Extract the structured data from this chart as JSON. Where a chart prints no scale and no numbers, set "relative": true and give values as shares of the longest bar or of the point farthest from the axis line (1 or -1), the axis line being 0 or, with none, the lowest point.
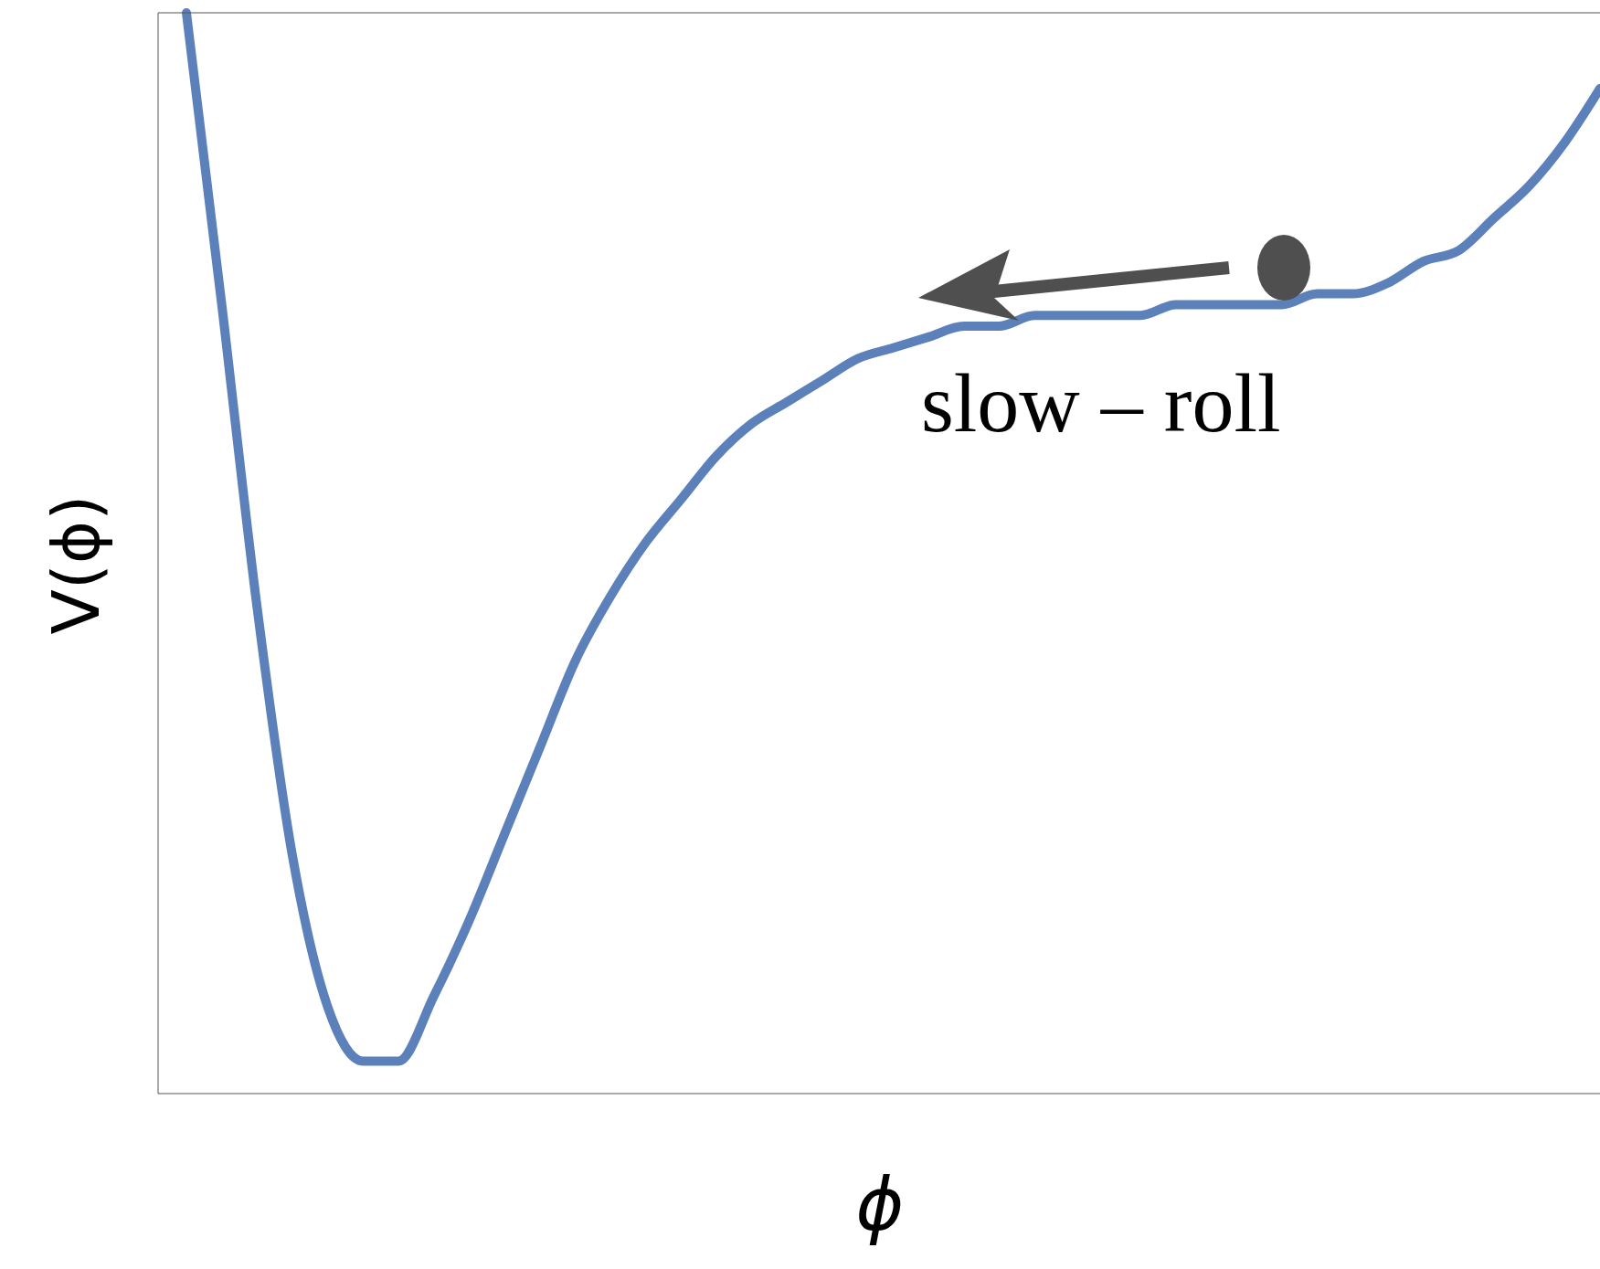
{
  "chart_data": {
    "type": "line",
    "relative": true,
    "xlabel": "ϕ",
    "ylabel": "V(ϕ)",
    "annotations": [
      "slow – roll"
    ],
    "categories": [
      null,
      null,
      null,
      null,
      null,
      null,
      null,
      null,
      null,
      null,
      null,
      null,
      null,
      null,
      null,
      null,
      null,
      null,
      null,
      null,
      null,
      null,
      null,
      null,
      null,
      null,
      null,
      null,
      null,
      null,
      null,
      null,
      null,
      null,
      null,
      null,
      null,
      null,
      null,
      null,
      null
    ],
    "series": [
      {
        "color": "#5b80ba",
        "values": [
          1.0,
          0.73,
          0.45,
          0.22,
          0.08,
          0.03,
          0.03,
          0.09,
          0.16,
          0.24,
          0.32,
          0.4,
          0.46,
          0.51,
          0.55,
          0.59,
          0.62,
          0.64,
          0.66,
          0.68,
          0.69,
          0.7,
          0.71,
          0.71,
          0.72,
          0.72,
          0.72,
          0.72,
          0.73,
          0.73,
          0.73,
          0.73,
          0.74,
          0.74,
          0.75,
          0.77,
          0.78,
          0.81,
          0.84,
          0.88,
          0.93
        ]
      }
    ]
  }
}
